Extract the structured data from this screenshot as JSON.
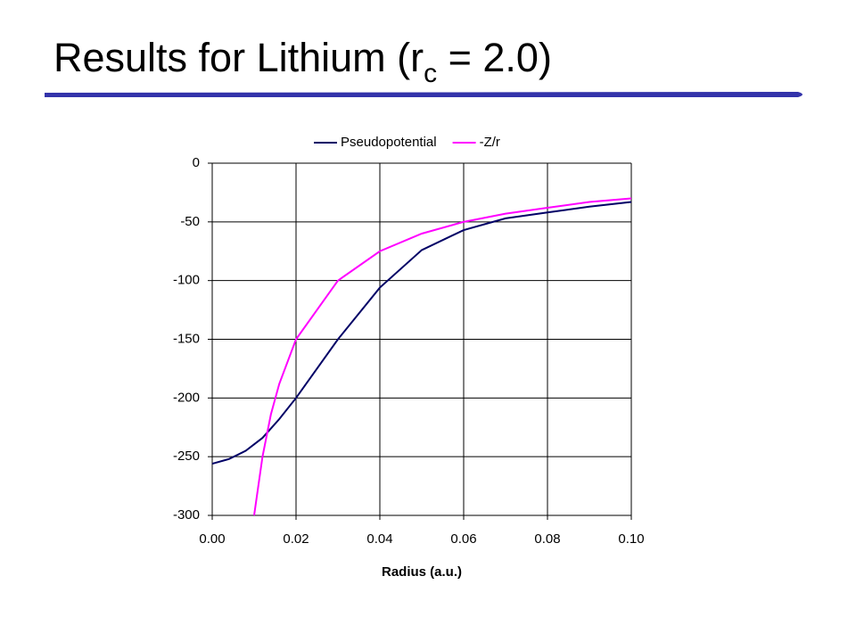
{
  "heading": {
    "title": "Results for Lithium (r",
    "title_subscript": "c",
    "title_end": " = 2.0)"
  },
  "chart_data": {
    "type": "line",
    "xlabel": "Radius (a.u.)",
    "xlim": [
      0,
      0.1
    ],
    "xticks": [
      {
        "value": 0,
        "label": "0.00"
      },
      {
        "value": 0.02,
        "label": "0.02"
      },
      {
        "value": 0.04,
        "label": "0.04"
      },
      {
        "value": 0.06,
        "label": "0.06"
      },
      {
        "value": 0.08,
        "label": "0.08"
      },
      {
        "value": 0.1,
        "label": "0.10"
      }
    ],
    "ylim": [
      -300,
      0
    ],
    "yticks": [
      0,
      -50,
      -100,
      -150,
      -200,
      -250,
      -300
    ],
    "grid": true,
    "legend": "top",
    "series": [
      {
        "name": "Pseudopotential",
        "color": "#000066",
        "x": [
          0,
          0.004,
          0.008,
          0.012,
          0.016,
          0.02,
          0.03,
          0.04,
          0.05,
          0.06,
          0.07,
          0.08,
          0.09,
          0.1
        ],
        "values": [
          -256,
          -252,
          -245,
          -234,
          -218,
          -200,
          -150,
          -106,
          -74,
          -57,
          -47,
          -42,
          -37,
          -33
        ]
      },
      {
        "name": "-Z/r",
        "color": "#ff00ff",
        "x": [
          0.01,
          0.012,
          0.014,
          0.016,
          0.02,
          0.03,
          0.04,
          0.05,
          0.06,
          0.07,
          0.08,
          0.09,
          0.1
        ],
        "values": [
          -300,
          -250,
          -214,
          -188,
          -150,
          -100,
          -75,
          -60,
          -50,
          -43,
          -38,
          -33,
          -30
        ]
      }
    ]
  }
}
